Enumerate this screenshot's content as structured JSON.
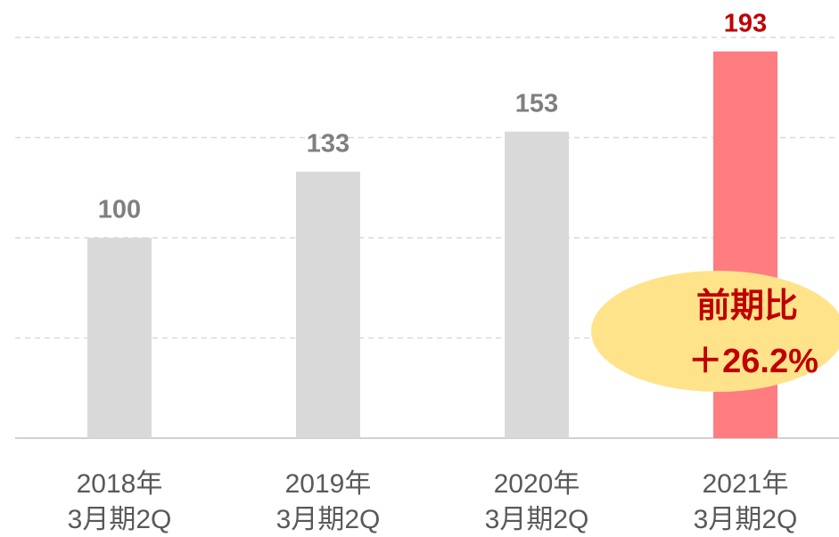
{
  "chart_data": {
    "type": "bar",
    "categories": [
      [
        "2018年",
        "3月期2Q"
      ],
      [
        "2019年",
        "3月期2Q"
      ],
      [
        "2020年",
        "3月期2Q"
      ],
      [
        "2021年",
        "3月期2Q"
      ]
    ],
    "values": [
      100,
      133,
      153,
      193
    ],
    "colors": [
      "#d9d9d9",
      "#d9d9d9",
      "#d9d9d9",
      "#ff7c80"
    ],
    "label_colors": [
      "#7f7f7f",
      "#7f7f7f",
      "#7f7f7f",
      "#c00000"
    ],
    "ylim": [
      0,
      200
    ],
    "yticks": [
      0,
      50,
      100,
      150,
      200
    ],
    "grid": true,
    "annotation": [
      "前期比",
      "＋26.2%"
    ]
  }
}
